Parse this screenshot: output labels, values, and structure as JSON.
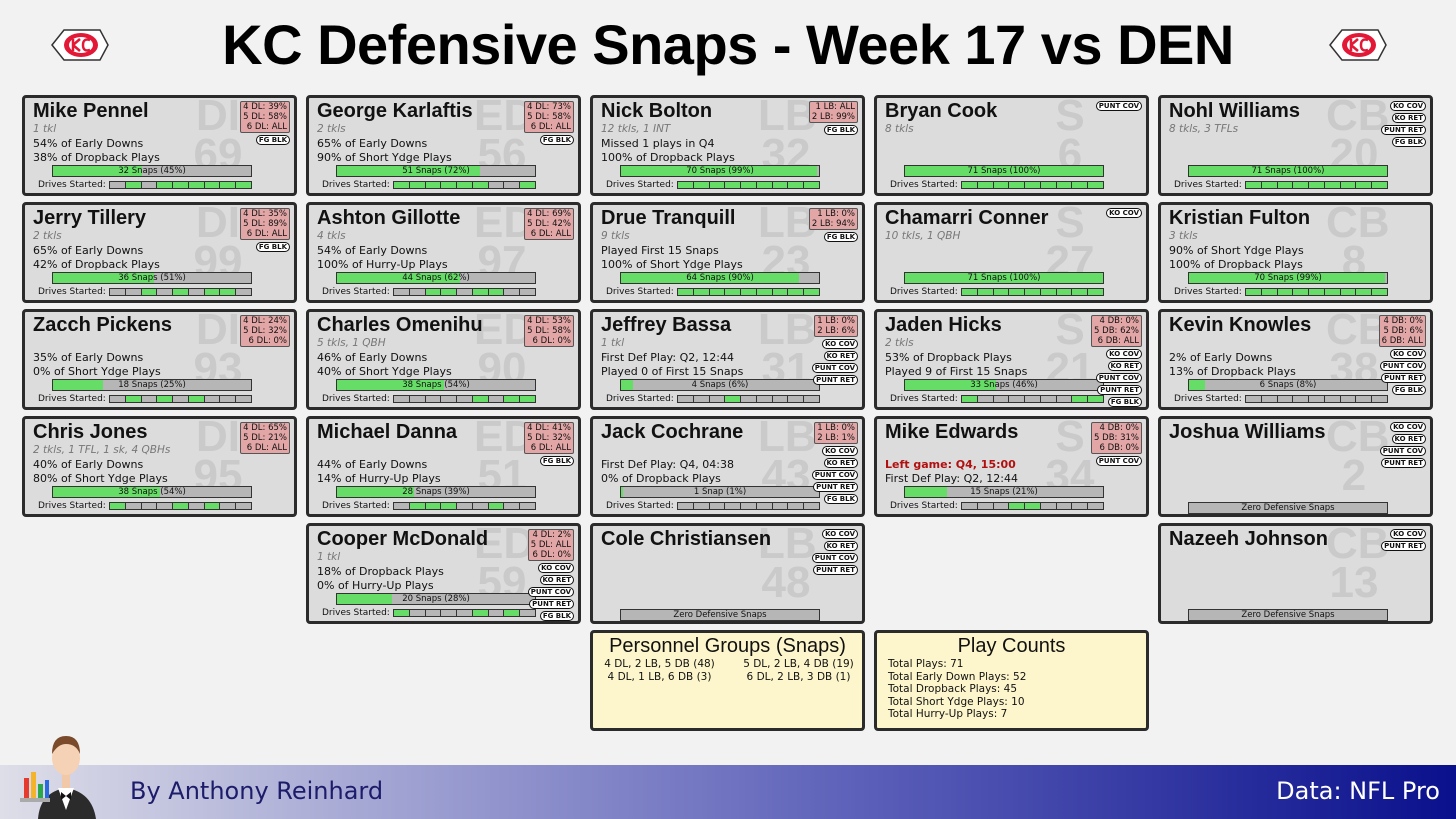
{
  "header": {
    "title": "KC Defensive Snaps - Week 17 vs DEN"
  },
  "colors": {
    "bar_fill": "#66dd66",
    "bar_empty": "#b6b6b6",
    "personnel_box": "#e3a6a6",
    "card_bg": "#dcdcdc",
    "info_bg": "#fdf6cc",
    "left_game": "#b01010"
  },
  "drives_label": "Drives Started:",
  "players": [
    {
      "name": "Mike Pennel",
      "pos": "DI",
      "num": "69",
      "stats": "1 tkl",
      "line1": "54% of Early Downs",
      "line2": "38% of Dropback Plays",
      "snaps_text": "32 Snaps (45%)",
      "snap_pct": 0.45,
      "drives": [
        0,
        1,
        0,
        1,
        1,
        1,
        1,
        1,
        1
      ],
      "personnel": [
        "4 DL: 39%",
        "5 DL: 58%",
        "6 DL: ALL"
      ],
      "tags": [
        "FG BLK"
      ]
    },
    {
      "name": "George Karlaftis",
      "pos": "ED",
      "num": "56",
      "stats": "2 tkls",
      "line1": "65% of Early Downs",
      "line2": "90% of Short Ydge Plays",
      "snaps_text": "51 Snaps (72%)",
      "snap_pct": 0.72,
      "drives": [
        1,
        1,
        1,
        1,
        1,
        1,
        0,
        0,
        1
      ],
      "personnel": [
        "4 DL: 73%",
        "5 DL: 58%",
        "6 DL: ALL"
      ],
      "tags": [
        "FG BLK"
      ]
    },
    {
      "name": "Nick Bolton",
      "pos": "LB",
      "num": "32",
      "stats": "12 tkls, 1 INT",
      "line1": "Missed 1 plays in Q4",
      "line2": "100% of Dropback Plays",
      "snaps_text": "70 Snaps (99%)",
      "snap_pct": 0.99,
      "drives": [
        1,
        1,
        1,
        1,
        1,
        1,
        1,
        1,
        1
      ],
      "personnel": [
        "1 LB: ALL",
        "2 LB: 99%"
      ],
      "tags": [
        "FG BLK"
      ]
    },
    {
      "name": "Bryan Cook",
      "pos": "S",
      "num": "6",
      "stats": "8 tkls",
      "line1": "",
      "line2": "",
      "snaps_text": "71 Snaps (100%)",
      "snap_pct": 1.0,
      "drives": [
        1,
        1,
        1,
        1,
        1,
        1,
        1,
        1,
        1
      ],
      "personnel": [],
      "tags": [
        "PUNT COV"
      ]
    },
    {
      "name": "Nohl Williams",
      "pos": "CB",
      "num": "20",
      "stats": "8 tkls, 3 TFLs",
      "line1": "",
      "line2": "",
      "snaps_text": "71 Snaps (100%)",
      "snap_pct": 1.0,
      "drives": [
        1,
        1,
        1,
        1,
        1,
        1,
        1,
        1,
        1
      ],
      "personnel": [],
      "tags": [
        "KO COV",
        "KO RET",
        "PUNT RET",
        "FG BLK"
      ]
    },
    {
      "name": "Jerry Tillery",
      "pos": "DI",
      "num": "99",
      "stats": "2 tkls",
      "line1": "65% of Early Downs",
      "line2": "42% of Dropback Plays",
      "snaps_text": "36 Snaps (51%)",
      "snap_pct": 0.51,
      "drives": [
        0,
        0,
        1,
        0,
        1,
        0,
        1,
        1,
        0
      ],
      "personnel": [
        "4 DL: 35%",
        "5 DL: 89%",
        "6 DL: ALL"
      ],
      "tags": [
        "FG BLK"
      ]
    },
    {
      "name": "Ashton Gillotte",
      "pos": "ED",
      "num": "97",
      "stats": "4 tkls",
      "line1": "54% of Early Downs",
      "line2": "100% of Hurry-Up Plays",
      "snaps_text": "44 Snaps (62%)",
      "snap_pct": 0.62,
      "drives": [
        0,
        0,
        1,
        1,
        0,
        1,
        1,
        0,
        0
      ],
      "personnel": [
        "4 DL: 69%",
        "5 DL: 42%",
        "6 DL: ALL"
      ],
      "tags": []
    },
    {
      "name": "Drue Tranquill",
      "pos": "LB",
      "num": "23",
      "stats": "9 tkls",
      "line1": "Played First 15 Snaps",
      "line2": "100% of Short Ydge Plays",
      "snaps_text": "64 Snaps (90%)",
      "snap_pct": 0.9,
      "drives": [
        1,
        1,
        1,
        1,
        1,
        1,
        1,
        1,
        1
      ],
      "personnel": [
        "1 LB: 0%",
        "2 LB: 94%"
      ],
      "tags": [
        "FG BLK"
      ]
    },
    {
      "name": "Chamarri Conner",
      "pos": "S",
      "num": "27",
      "stats": "10 tkls, 1 QBH",
      "line1": "",
      "line2": "",
      "snaps_text": "71 Snaps (100%)",
      "snap_pct": 1.0,
      "drives": [
        1,
        1,
        1,
        1,
        1,
        1,
        1,
        1,
        1
      ],
      "personnel": [],
      "tags": [
        "KO COV"
      ]
    },
    {
      "name": "Kristian Fulton",
      "pos": "CB",
      "num": "8",
      "stats": "3 tkls",
      "line1": "90% of Short Ydge Plays",
      "line2": "100% of Dropback Plays",
      "snaps_text": "70 Snaps (99%)",
      "snap_pct": 0.99,
      "drives": [
        1,
        1,
        1,
        1,
        1,
        1,
        1,
        1,
        1
      ],
      "personnel": [],
      "tags": []
    },
    {
      "name": "Zacch Pickens",
      "pos": "DI",
      "num": "93",
      "stats": "",
      "line1": "35% of Early Downs",
      "line2": "0% of Short Ydge Plays",
      "snaps_text": "18 Snaps (25%)",
      "snap_pct": 0.25,
      "drives": [
        0,
        1,
        0,
        1,
        0,
        1,
        0,
        0,
        0
      ],
      "personnel": [
        "4 DL: 24%",
        "5 DL: 32%",
        "6 DL: 0%"
      ],
      "tags": []
    },
    {
      "name": "Charles Omenihu",
      "pos": "ED",
      "num": "90",
      "stats": "5 tkls, 1 QBH",
      "line1": "46% of Early Downs",
      "line2": "40% of Short Ydge Plays",
      "snaps_text": "38 Snaps (54%)",
      "snap_pct": 0.54,
      "drives": [
        0,
        0,
        0,
        0,
        0,
        1,
        0,
        1,
        1
      ],
      "personnel": [
        "4 DL: 53%",
        "5 DL: 58%",
        "6 DL: 0%"
      ],
      "tags": []
    },
    {
      "name": "Jeffrey Bassa",
      "pos": "LB",
      "num": "31",
      "stats": "1 tkl",
      "line1": "First Def Play: Q2, 12:44",
      "line2": "Played 0 of First 15 Snaps",
      "snaps_text": "4 Snaps (6%)",
      "snap_pct": 0.06,
      "drives": [
        0,
        0,
        0,
        1,
        0,
        0,
        0,
        0,
        0
      ],
      "personnel": [
        "1 LB: 0%",
        "2 LB: 6%"
      ],
      "tags": [
        "KO COV",
        "KO RET",
        "PUNT COV",
        "PUNT RET"
      ]
    },
    {
      "name": "Jaden Hicks",
      "pos": "S",
      "num": "21",
      "stats": "2 tkls",
      "line1": "53% of Dropback Plays",
      "line2": "Played 9 of First 15 Snaps",
      "snaps_text": "33 Snaps (46%)",
      "snap_pct": 0.46,
      "drives": [
        1,
        0,
        0,
        0,
        0,
        0,
        0,
        1,
        1
      ],
      "personnel": [
        "4 DB: 0%",
        "5 DB: 62%",
        "6 DB: ALL"
      ],
      "tags": [
        "KO COV",
        "KO RET",
        "PUNT COV",
        "PUNT RET",
        "FG BLK"
      ]
    },
    {
      "name": "Kevin Knowles",
      "pos": "CB",
      "num": "38",
      "stats": "",
      "line1": "2% of Early Downs",
      "line2": "13% of Dropback Plays",
      "snaps_text": "6 Snaps (8%)",
      "snap_pct": 0.08,
      "drives": [
        0,
        0,
        0,
        0,
        0,
        0,
        0,
        0,
        0
      ],
      "personnel": [
        "4 DB: 0%",
        "5 DB: 6%",
        "6 DB: ALL"
      ],
      "tags": [
        "KO COV",
        "PUNT COV",
        "PUNT RET",
        "FG BLK"
      ]
    },
    {
      "name": "Chris Jones",
      "pos": "DI",
      "num": "95",
      "stats": "2 tkls, 1 TFL, 1 sk, 4 QBHs",
      "line1": "40% of Early Downs",
      "line2": "80% of Short Ydge Plays",
      "snaps_text": "38 Snaps (54%)",
      "snap_pct": 0.54,
      "drives": [
        1,
        0,
        0,
        0,
        1,
        0,
        1,
        0,
        0
      ],
      "personnel": [
        "4 DL: 65%",
        "5 DL: 21%",
        "6 DL: ALL"
      ],
      "tags": []
    },
    {
      "name": "Michael Danna",
      "pos": "ED",
      "num": "51",
      "stats": "",
      "line1": "44% of Early Downs",
      "line2": "14% of Hurry-Up Plays",
      "snaps_text": "28 Snaps (39%)",
      "snap_pct": 0.39,
      "drives": [
        0,
        1,
        1,
        1,
        0,
        0,
        1,
        0,
        0
      ],
      "personnel": [
        "4 DL: 41%",
        "5 DL: 32%",
        "6 DL: ALL"
      ],
      "tags": [
        "FG BLK"
      ]
    },
    {
      "name": "Jack Cochrane",
      "pos": "LB",
      "num": "43",
      "stats": "",
      "line1": "First Def Play: Q4, 04:38",
      "line2": "0% of Dropback Plays",
      "snaps_text": "1 Snap (1%)",
      "snap_pct": 0.01,
      "drives": [
        0,
        0,
        0,
        0,
        0,
        0,
        0,
        0,
        0
      ],
      "personnel": [
        "1 LB: 0%",
        "2 LB: 1%"
      ],
      "tags": [
        "KO COV",
        "KO RET",
        "PUNT COV",
        "PUNT RET",
        "FG BLK"
      ]
    },
    {
      "name": "Mike Edwards",
      "pos": "S",
      "num": "34",
      "stats": "",
      "line1": "Left game: Q4, 15:00",
      "line1_red": true,
      "line2": "First Def Play: Q2, 12:44",
      "snaps_text": "15 Snaps (21%)",
      "snap_pct": 0.21,
      "drives": [
        0,
        0,
        0,
        1,
        1,
        0,
        0,
        0,
        0
      ],
      "personnel": [
        "4 DB: 0%",
        "5 DB: 31%",
        "6 DB: 0%"
      ],
      "tags": [
        "PUNT COV"
      ]
    },
    {
      "name": "Joshua Williams",
      "pos": "CB",
      "num": "2",
      "stats": "",
      "line1": "",
      "line2": "",
      "snaps_text": "Zero Defensive Snaps",
      "snap_pct": 0,
      "drives": null,
      "personnel": [],
      "tags": [
        "KO COV",
        "KO RET",
        "PUNT COV",
        "PUNT RET"
      ]
    },
    {
      "name": "Cooper McDonald",
      "pos": "ED",
      "num": "59",
      "stats": "1 tkl",
      "line1": "18% of Dropback Plays",
      "line2": "0% of Hurry-Up Plays",
      "snaps_text": "20 Snaps (28%)",
      "snap_pct": 0.28,
      "drives": [
        1,
        0,
        0,
        0,
        0,
        1,
        0,
        1,
        0
      ],
      "personnel": [
        "4 DL: 2%",
        "5 DL: ALL",
        "6 DL: 0%"
      ],
      "tags": [
        "KO COV",
        "KO RET",
        "PUNT COV",
        "PUNT RET",
        "FG BLK"
      ]
    },
    {
      "name": "Cole Christiansen",
      "pos": "LB",
      "num": "48",
      "stats": "",
      "line1": "",
      "line2": "",
      "snaps_text": "Zero Defensive Snaps",
      "snap_pct": 0,
      "drives": null,
      "personnel": [],
      "tags": [
        "KO COV",
        "KO RET",
        "PUNT COV",
        "PUNT RET"
      ]
    },
    {
      "name": "Nazeeh Johnson",
      "pos": "CB",
      "num": "13",
      "stats": "",
      "line1": "",
      "line2": "",
      "snaps_text": "Zero Defensive Snaps",
      "snap_pct": 0,
      "drives": null,
      "personnel": [],
      "tags": [
        "KO COV",
        "PUNT RET"
      ]
    }
  ],
  "personnel_groups": {
    "title": "Personnel Groups (Snaps)",
    "items": [
      "4 DL, 2 LB, 5 DB (48)",
      "5 DL, 2 LB, 4 DB (19)",
      "4 DL, 1 LB, 6 DB (3)",
      "6 DL, 2 LB, 3 DB (1)"
    ]
  },
  "play_counts": {
    "title": "Play Counts",
    "items": [
      "Total Plays: 71",
      "Total Early Down Plays: 52",
      "Total Dropback Plays: 45",
      "Total Short Ydge Plays: 10",
      "Total Hurry-Up Plays: 7"
    ]
  },
  "footer": {
    "byline": "By Anthony Reinhard",
    "source": "Data: NFL Pro"
  }
}
